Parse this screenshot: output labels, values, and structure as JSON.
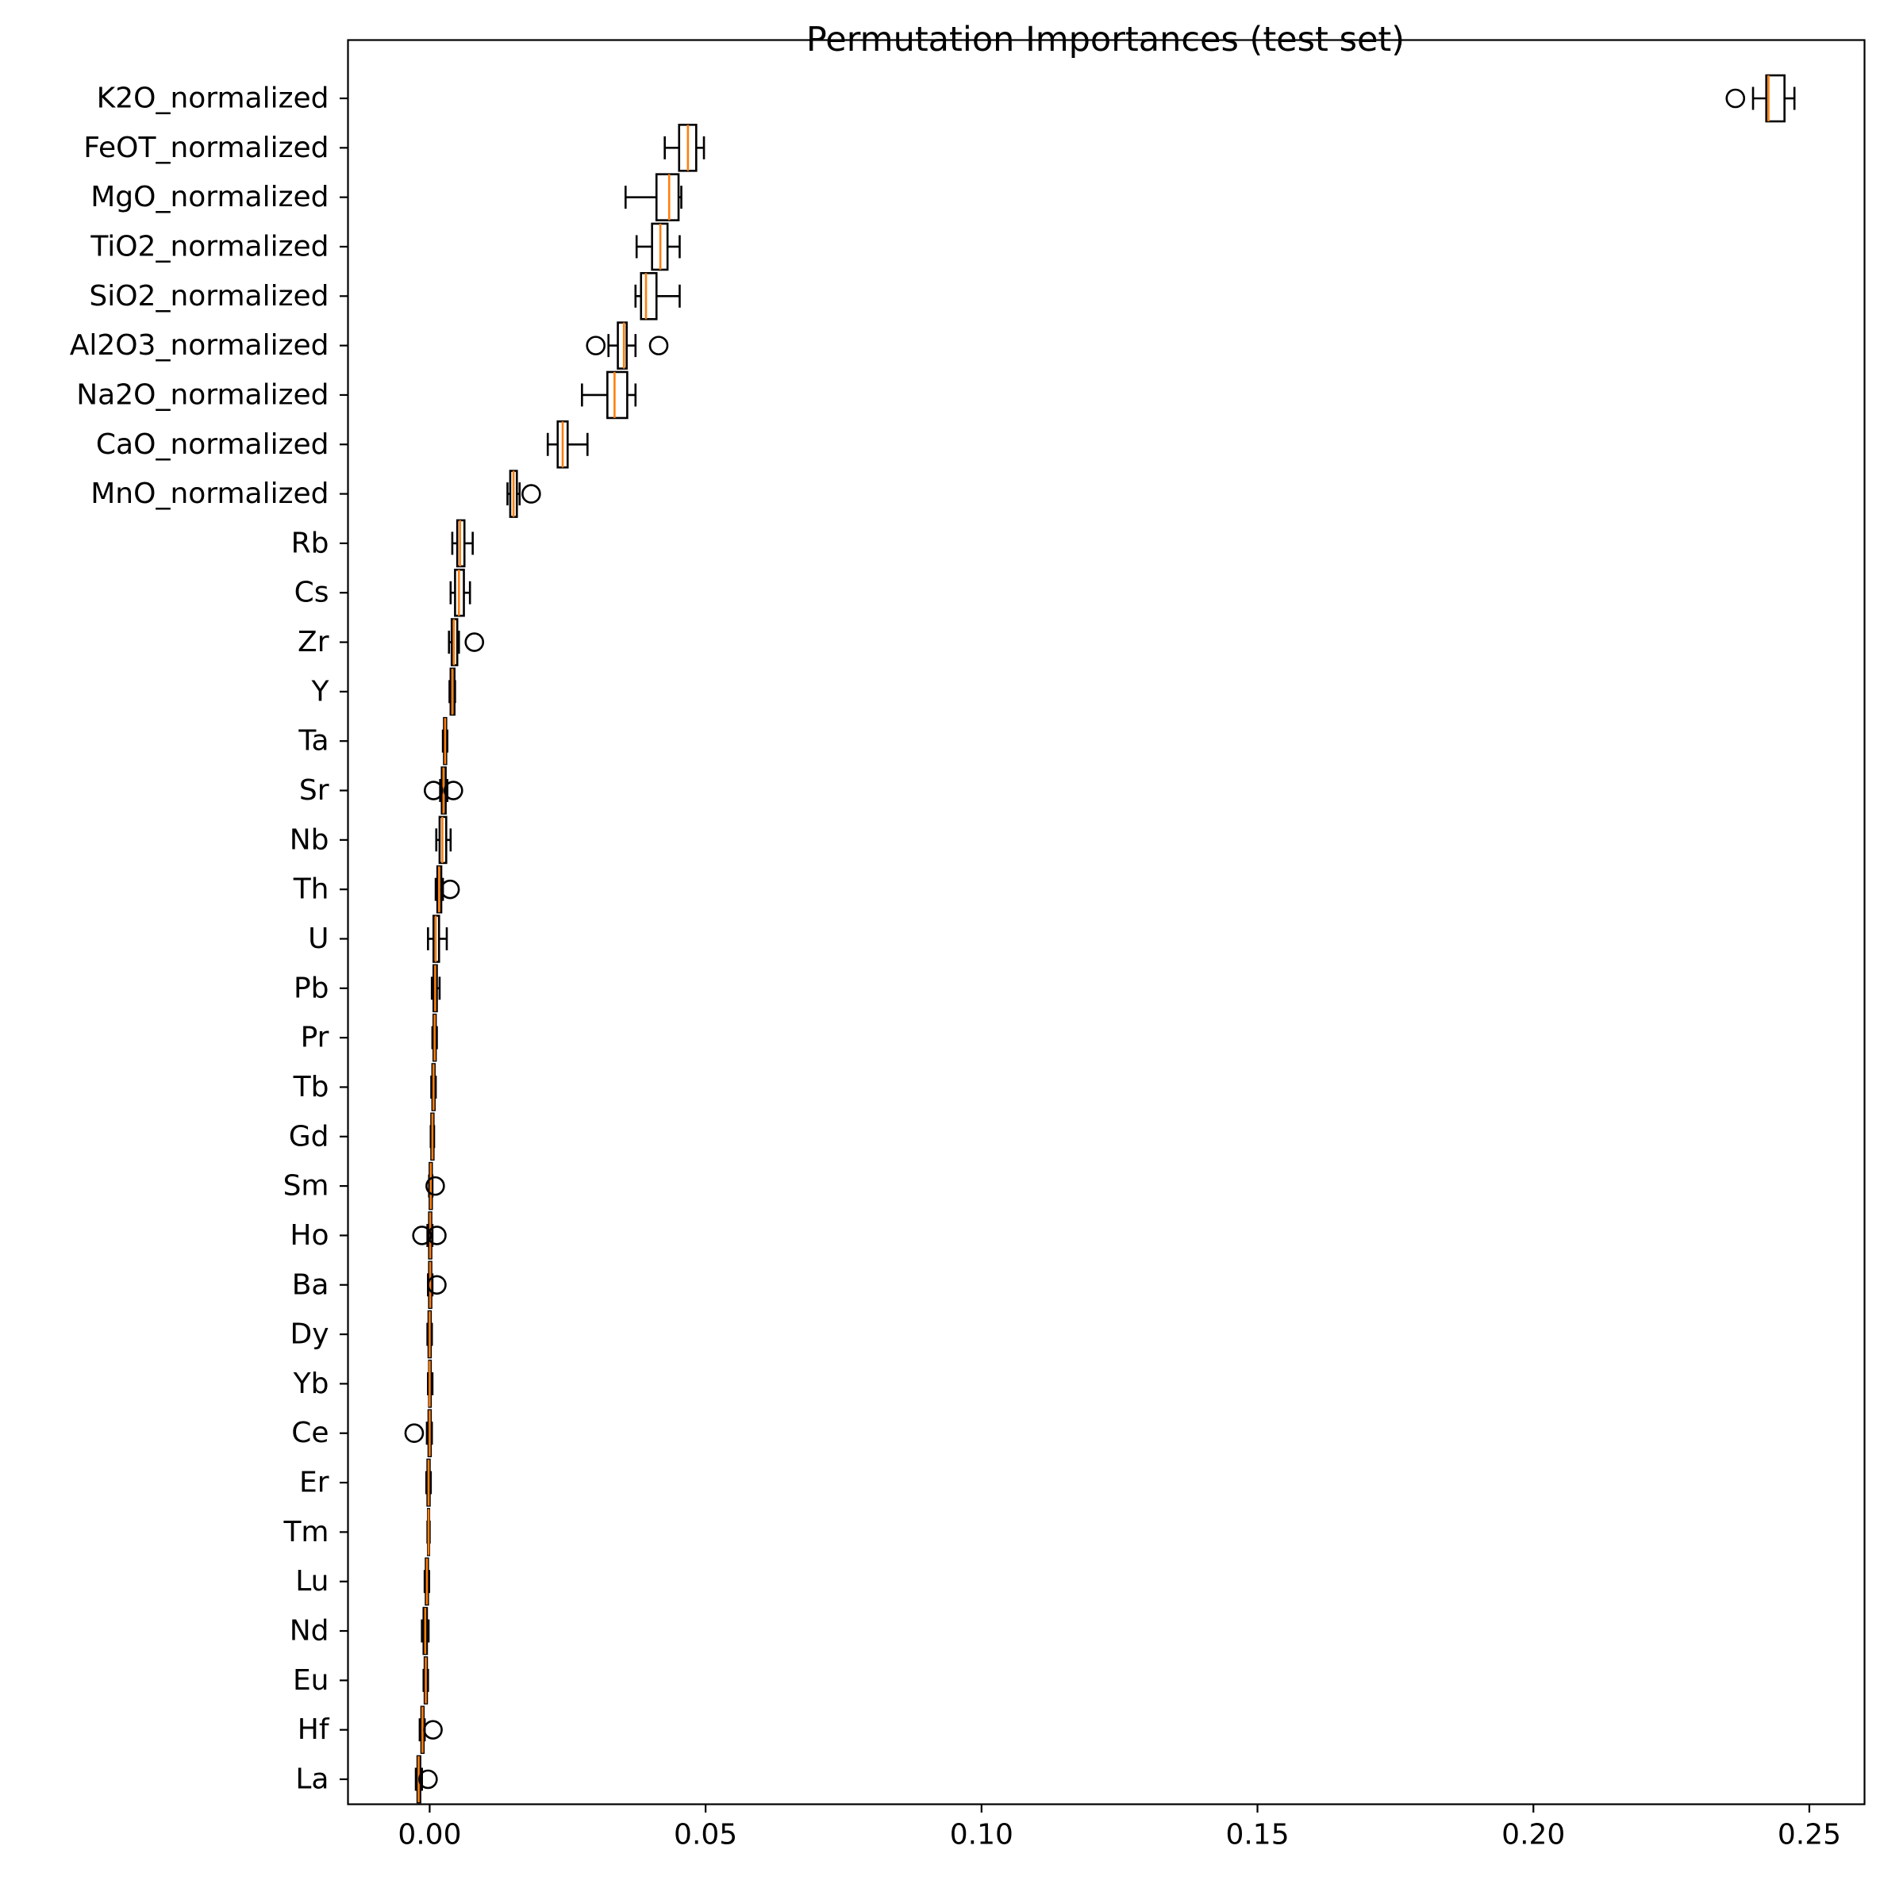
{
  "chart_data": {
    "type": "boxplot",
    "orientation": "horizontal",
    "title": "Permutation Importances (test set)",
    "xlabel": "",
    "ylabel": "",
    "xlim": [
      -0.0148,
      0.26
    ],
    "xticks": [
      0.0,
      0.05,
      0.1,
      0.15,
      0.2,
      0.25
    ],
    "xtick_labels": [
      "0.00",
      "0.05",
      "0.10",
      "0.15",
      "0.20",
      "0.25"
    ],
    "grid": false,
    "legend": "none",
    "colors": {
      "box_edge": "#000000",
      "median": "#ff7f0e",
      "flier": "#000000"
    },
    "features": [
      {
        "label": "K2O_normalized",
        "whislo": 0.2398,
        "q1": 0.2422,
        "med": 0.2426,
        "q3": 0.2455,
        "whishi": 0.2473,
        "fliers": [
          0.2366
        ]
      },
      {
        "label": "FeOT_normalized",
        "whislo": 0.0426,
        "q1": 0.0452,
        "med": 0.0468,
        "q3": 0.0483,
        "whishi": 0.0497,
        "fliers": []
      },
      {
        "label": "MgO_normalized",
        "whislo": 0.0355,
        "q1": 0.0411,
        "med": 0.0434,
        "q3": 0.0451,
        "whishi": 0.0456,
        "fliers": []
      },
      {
        "label": "TiO2_normalized",
        "whislo": 0.0375,
        "q1": 0.0403,
        "med": 0.0418,
        "q3": 0.0431,
        "whishi": 0.0453,
        "fliers": []
      },
      {
        "label": "SiO2_normalized",
        "whislo": 0.0373,
        "q1": 0.0383,
        "med": 0.0392,
        "q3": 0.0411,
        "whishi": 0.0453,
        "fliers": []
      },
      {
        "label": "Al2O3_normalized",
        "whislo": 0.0324,
        "q1": 0.0341,
        "med": 0.0352,
        "q3": 0.0357,
        "whishi": 0.0373,
        "fliers": [
          0.0301,
          0.0415
        ]
      },
      {
        "label": "Na2O_normalized",
        "whislo": 0.0276,
        "q1": 0.0322,
        "med": 0.0335,
        "q3": 0.0358,
        "whishi": 0.0373,
        "fliers": []
      },
      {
        "label": "CaO_normalized",
        "whislo": 0.0214,
        "q1": 0.0232,
        "med": 0.0241,
        "q3": 0.025,
        "whishi": 0.0286,
        "fliers": []
      },
      {
        "label": "MnO_normalized",
        "whislo": 0.0141,
        "q1": 0.0146,
        "med": 0.0152,
        "q3": 0.0158,
        "whishi": 0.0163,
        "fliers": [
          0.0184
        ]
      },
      {
        "label": "Rb",
        "whislo": 0.0041,
        "q1": 0.005,
        "med": 0.0055,
        "q3": 0.0063,
        "whishi": 0.0078,
        "fliers": []
      },
      {
        "label": "Cs",
        "whislo": 0.0038,
        "q1": 0.0046,
        "med": 0.0053,
        "q3": 0.0062,
        "whishi": 0.0073,
        "fliers": []
      },
      {
        "label": "Zr",
        "whislo": 0.0035,
        "q1": 0.004,
        "med": 0.0044,
        "q3": 0.005,
        "whishi": 0.0053,
        "fliers": [
          0.0081
        ]
      },
      {
        "label": "Y",
        "whislo": 0.0036,
        "q1": 0.0038,
        "med": 0.0041,
        "q3": 0.0045,
        "whishi": 0.0046,
        "fliers": []
      },
      {
        "label": "Ta",
        "whislo": 0.0024,
        "q1": 0.0026,
        "med": 0.0028,
        "q3": 0.003,
        "whishi": 0.0032,
        "fliers": []
      },
      {
        "label": "Sr",
        "whislo": 0.0019,
        "q1": 0.0022,
        "med": 0.0025,
        "q3": 0.0029,
        "whishi": 0.0032,
        "fliers": [
          0.0007,
          0.0043
        ]
      },
      {
        "label": "Nb",
        "whislo": 0.0012,
        "q1": 0.0018,
        "med": 0.0023,
        "q3": 0.003,
        "whishi": 0.0038,
        "fliers": []
      },
      {
        "label": "Th",
        "whislo": 0.0011,
        "q1": 0.0014,
        "med": 0.0017,
        "q3": 0.0021,
        "whishi": 0.0024,
        "fliers": [
          0.0037
        ]
      },
      {
        "label": "U",
        "whislo": -0.0003,
        "q1": 0.0007,
        "med": 0.0011,
        "q3": 0.0017,
        "whishi": 0.0031,
        "fliers": []
      },
      {
        "label": "Pb",
        "whislo": 0.0004,
        "q1": 0.0007,
        "med": 0.001,
        "q3": 0.0013,
        "whishi": 0.0018,
        "fliers": []
      },
      {
        "label": "Pr",
        "whislo": 0.0005,
        "q1": 0.0007,
        "med": 0.0009,
        "q3": 0.0011,
        "whishi": 0.0013,
        "fliers": []
      },
      {
        "label": "Tb",
        "whislo": 0.0003,
        "q1": 0.0005,
        "med": 0.0007,
        "q3": 0.0009,
        "whishi": 0.0011,
        "fliers": []
      },
      {
        "label": "Gd",
        "whislo": 0.0002,
        "q1": 0.0003,
        "med": 0.0005,
        "q3": 0.0007,
        "whishi": 0.0008,
        "fliers": []
      },
      {
        "label": "Sm",
        "whislo": -0.0001,
        "q1": 0.0,
        "med": 0.0002,
        "q3": 0.0004,
        "whishi": 0.0005,
        "fliers": [
          0.001
        ]
      },
      {
        "label": "Ho",
        "whislo": -0.0004,
        "q1": -0.0001,
        "med": 0.0001,
        "q3": 0.0003,
        "whishi": 0.0005,
        "fliers": [
          -0.0014,
          0.0013
        ]
      },
      {
        "label": "Ba",
        "whislo": -0.0003,
        "q1": -0.0001,
        "med": 0.0001,
        "q3": 0.0003,
        "whishi": 0.0005,
        "fliers": [
          0.0013
        ]
      },
      {
        "label": "Dy",
        "whislo": -0.0004,
        "q1": -0.0002,
        "med": 0.0,
        "q3": 0.0002,
        "whishi": 0.0004,
        "fliers": []
      },
      {
        "label": "Yb",
        "whislo": -0.0003,
        "q1": -0.0001,
        "med": 0.0,
        "q3": 0.0002,
        "whishi": 0.0005,
        "fliers": []
      },
      {
        "label": "Ce",
        "whislo": -0.0005,
        "q1": -0.0002,
        "med": 0.0,
        "q3": 0.0002,
        "whishi": 0.0004,
        "fliers": [
          -0.0028
        ]
      },
      {
        "label": "Er",
        "whislo": -0.0006,
        "q1": -0.0004,
        "med": -0.0002,
        "q3": 0.0,
        "whishi": 0.0002,
        "fliers": []
      },
      {
        "label": "Tm",
        "whislo": -0.0004,
        "q1": -0.0003,
        "med": -0.0002,
        "q3": -0.0001,
        "whishi": 0.0,
        "fliers": []
      },
      {
        "label": "Lu",
        "whislo": -0.0009,
        "q1": -0.0007,
        "med": -0.0005,
        "q3": -0.0003,
        "whishi": -0.0001,
        "fliers": []
      },
      {
        "label": "Nd",
        "whislo": -0.0014,
        "q1": -0.0011,
        "med": -0.0008,
        "q3": -0.0005,
        "whishi": -0.0002,
        "fliers": []
      },
      {
        "label": "Eu",
        "whislo": -0.0011,
        "q1": -0.0009,
        "med": -0.0007,
        "q3": -0.0005,
        "whishi": -0.0003,
        "fliers": []
      },
      {
        "label": "Hf",
        "whislo": -0.0018,
        "q1": -0.0015,
        "med": -0.0013,
        "q3": -0.0011,
        "whishi": -0.0009,
        "fliers": [
          0.0006
        ]
      },
      {
        "label": "La",
        "whislo": -0.0025,
        "q1": -0.0022,
        "med": -0.002,
        "q3": -0.0017,
        "whishi": -0.0014,
        "fliers": [
          -0.0003
        ]
      }
    ]
  }
}
